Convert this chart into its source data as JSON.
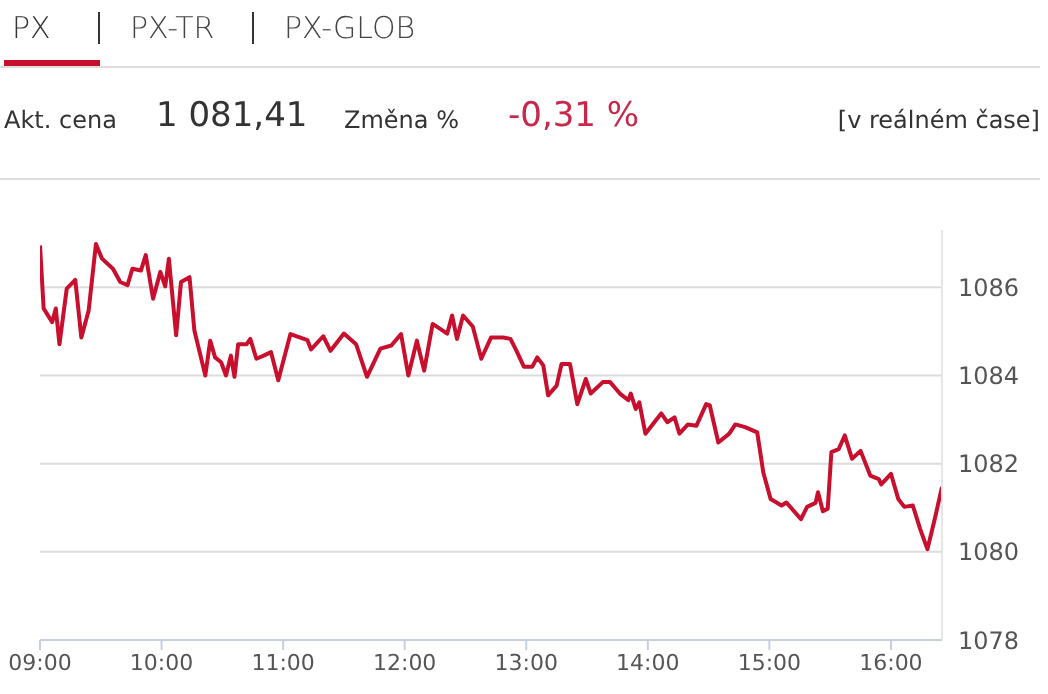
{
  "chart_data": {
    "type": "line",
    "annotations": [
      "PX",
      "PX-TR",
      "PX-GLOB",
      "Akt. cena",
      "1 081,41",
      "Změna %",
      "-0,31 %",
      "[v reálném čase]"
    ],
    "series": [
      {
        "color": "#c8102e",
        "x": [
          9.0,
          9.03,
          9.1,
          9.13,
          9.16,
          9.22,
          9.29,
          9.34,
          9.4,
          9.46,
          9.51,
          9.6,
          9.66,
          9.72,
          9.76,
          9.83,
          9.87,
          9.93,
          9.99,
          10.03,
          10.06,
          10.12,
          10.16,
          10.23,
          10.27,
          10.36,
          10.4,
          10.44,
          10.49,
          10.53,
          10.57,
          10.6,
          10.63,
          10.7,
          10.73,
          10.78,
          10.84,
          10.9,
          10.96,
          11.06,
          11.2,
          11.23,
          11.33,
          11.39,
          11.5,
          11.6,
          11.69,
          11.8,
          11.89,
          11.97,
          12.03,
          12.1,
          12.16,
          12.23,
          12.35,
          12.39,
          12.43,
          12.48,
          12.56,
          12.63,
          12.71,
          12.81,
          12.87,
          12.92,
          12.98,
          13.05,
          13.09,
          13.14,
          13.18,
          13.25,
          13.29,
          13.36,
          13.42,
          13.49,
          13.53,
          13.63,
          13.69,
          13.77,
          13.84,
          13.86,
          13.9,
          13.93,
          13.98,
          14.11,
          14.16,
          14.22,
          14.26,
          14.33,
          14.4,
          14.48,
          14.51,
          14.58,
          14.67,
          14.72,
          14.8,
          14.9,
          14.95,
          15.01,
          15.1,
          15.14,
          15.26,
          15.31,
          15.38,
          15.4,
          15.44,
          15.48,
          15.51,
          15.57,
          15.62,
          15.68,
          15.75,
          15.83,
          15.9,
          15.92,
          16.0,
          16.06,
          16.11,
          16.18,
          16.24,
          16.3,
          16.36,
          16.42
        ],
        "values": [
          1086.95,
          1085.52,
          1085.21,
          1085.52,
          1084.71,
          1085.97,
          1086.17,
          1084.86,
          1085.47,
          1086.98,
          1086.65,
          1086.42,
          1086.12,
          1086.05,
          1086.42,
          1086.38,
          1086.73,
          1085.74,
          1086.35,
          1086.02,
          1086.65,
          1084.91,
          1086.12,
          1086.23,
          1085.02,
          1084.0,
          1084.79,
          1084.41,
          1084.3,
          1084.0,
          1084.45,
          1083.97,
          1084.71,
          1084.71,
          1084.83,
          1084.38,
          1084.45,
          1084.53,
          1083.89,
          1084.94,
          1084.8,
          1084.59,
          1084.89,
          1084.56,
          1084.95,
          1084.71,
          1083.97,
          1084.61,
          1084.68,
          1084.94,
          1084.0,
          1084.79,
          1084.11,
          1085.17,
          1084.95,
          1085.36,
          1084.83,
          1085.36,
          1085.11,
          1084.38,
          1084.86,
          1084.86,
          1084.83,
          1084.56,
          1084.2,
          1084.2,
          1084.41,
          1084.23,
          1083.55,
          1083.77,
          1084.26,
          1084.26,
          1083.35,
          1083.92,
          1083.59,
          1083.85,
          1083.85,
          1083.59,
          1083.44,
          1083.59,
          1083.24,
          1083.39,
          1082.68,
          1083.14,
          1082.94,
          1083.05,
          1082.68,
          1082.89,
          1082.86,
          1083.35,
          1083.32,
          1082.48,
          1082.68,
          1082.89,
          1082.83,
          1082.71,
          1081.8,
          1081.2,
          1081.05,
          1081.12,
          1080.74,
          1081.02,
          1081.11,
          1081.35,
          1080.92,
          1080.98,
          1082.26,
          1082.33,
          1082.64,
          1082.11,
          1082.29,
          1081.73,
          1081.65,
          1081.53,
          1081.77,
          1081.2,
          1081.02,
          1081.05,
          1080.52,
          1080.06,
          1080.74,
          1081.47
        ]
      }
    ],
    "xlim": [
      9,
      16.42
    ],
    "xticks": [
      {
        "value": 9,
        "label": "09:00"
      },
      {
        "value": 10,
        "label": "10:00"
      },
      {
        "value": 11,
        "label": "11:00"
      },
      {
        "value": 12,
        "label": "12:00"
      },
      {
        "value": 13,
        "label": "13:00"
      },
      {
        "value": 14,
        "label": "14:00"
      },
      {
        "value": 15,
        "label": "15:00"
      },
      {
        "value": 16,
        "label": "16:00"
      }
    ],
    "ylim": [
      1078,
      1087.3
    ],
    "yticks": [
      1078,
      1080,
      1082,
      1084,
      1086
    ],
    "grid": "y",
    "legend": false,
    "marker": "none",
    "line_style": "solid"
  }
}
